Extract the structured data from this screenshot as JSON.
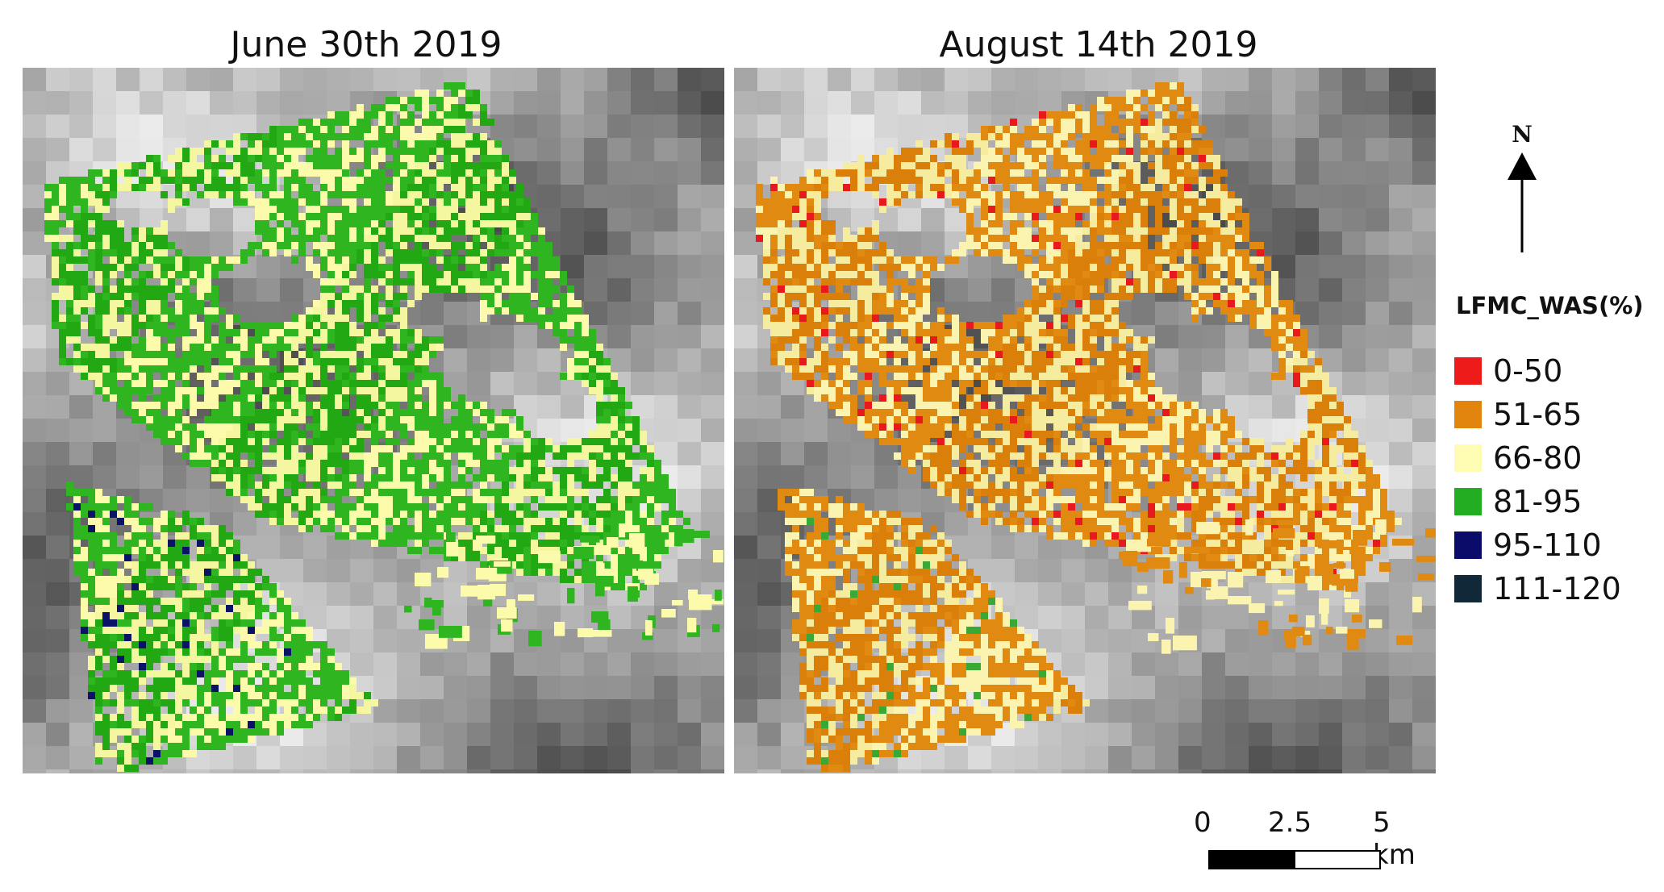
{
  "panels": [
    {
      "title": "June 30th 2019",
      "palette": [
        "#2eb520",
        "#22a812",
        "#fbfbab",
        "#f5f7a0",
        "#0a1366",
        "#2eb520"
      ]
    },
    {
      "title": "August 14th 2019",
      "palette": [
        "#e08a12",
        "#d97f0a",
        "#fbf3b0",
        "#f6eca0",
        "#3aa834",
        "#e8191c"
      ]
    }
  ],
  "north_arrow": {
    "label": "N"
  },
  "legend": {
    "title": "LFMC_WAS(%)",
    "items": [
      {
        "label": "0-50",
        "color": "#ee1b1b"
      },
      {
        "label": "51-65",
        "color": "#e2850f"
      },
      {
        "label": "66-80",
        "color": "#fffcb4"
      },
      {
        "label": "81-95",
        "color": "#22ad22"
      },
      {
        "label": "95-110",
        "color": "#0b0c6a"
      },
      {
        "label": "111-120",
        "color": "#112838"
      }
    ]
  },
  "scale_bar": {
    "labels": [
      "0",
      "2.5",
      "5 km"
    ]
  }
}
